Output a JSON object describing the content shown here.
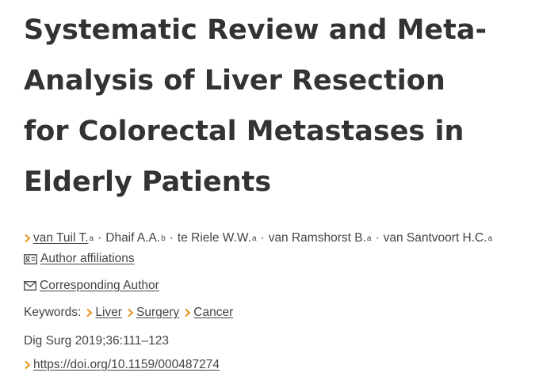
{
  "title_lines": [
    "Systematic Review and Meta-",
    "Analysis of Liver Resection",
    "for Colorectal Metastases in",
    "Elderly Patients"
  ],
  "authors": [
    {
      "name": "van Tuil T.",
      "affiliation": "a"
    },
    {
      "name": "Dhaif A.A.",
      "affiliation": "b"
    },
    {
      "name": "te Riele W.W.",
      "affiliation": "a"
    },
    {
      "name": "van Ramshorst B.",
      "affiliation": "a"
    },
    {
      "name": "van Santvoort H.C.",
      "affiliation": "a"
    }
  ],
  "author_separator": "·",
  "affiliations_link": "Author affiliations",
  "corresponding_link": "Corresponding Author",
  "keywords_label": "Keywords:",
  "keywords": [
    "Liver",
    "Surgery",
    "Cancer"
  ],
  "citation": "Dig Surg 2019;36:111–123",
  "doi": "https://doi.org/10.1159/000487274"
}
